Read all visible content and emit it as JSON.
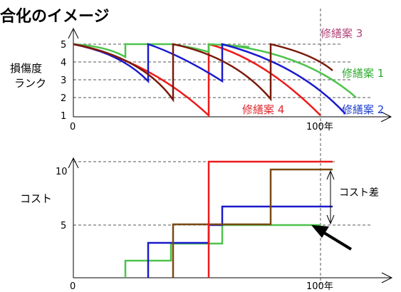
{
  "title": "合化のイメージ",
  "top_chart": {
    "y_axis_label_line1": "損傷度",
    "y_axis_label_line2": "ランク",
    "y_ticks": [
      "1",
      "2",
      "3",
      "4",
      "5"
    ],
    "x_tick_start": "0",
    "x_tick_end": "100年",
    "series_labels": [
      {
        "text": "修繕案 3",
        "color": "#b0457a"
      },
      {
        "text": "修繕案 1",
        "color": "#2eaa2e"
      },
      {
        "text": "修繕案 4",
        "color": "#e0282e"
      },
      {
        "text": "修繕案 2",
        "color": "#1f3fd0"
      }
    ]
  },
  "bottom_chart": {
    "y_axis_label": "コスト",
    "y_tick_10": "10",
    "y_tick_5": "5",
    "x_tick_start": "0",
    "x_tick_end": "100年",
    "cost_diff_label": "コスト差"
  },
  "colors": {
    "plan1": "#4cc44c",
    "plan2": "#1a1acc",
    "plan3": "#7a1a0a",
    "plan4": "#ee1a1a",
    "brown": "#7a4a12"
  }
}
